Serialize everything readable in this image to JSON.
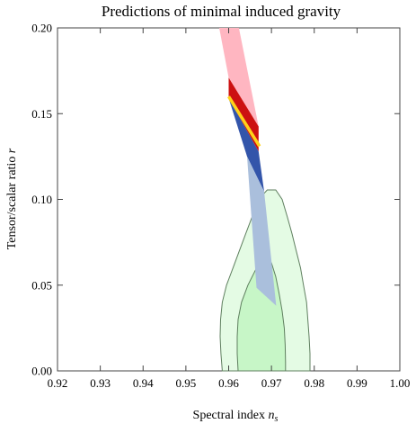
{
  "chart_data": {
    "type": "area",
    "title": "Predictions of minimal induced gravity",
    "xlabel": "Spectral index",
    "xlabel_symbol": "n",
    "xlabel_subscript": "s",
    "ylabel": "Tensor/scalar ratio",
    "ylabel_symbol": "r",
    "xlim": [
      0.92,
      1.0
    ],
    "ylim": [
      0.0,
      0.2
    ],
    "x_ticks": [
      "0.92",
      "0.93",
      "0.94",
      "0.95",
      "0.96",
      "0.97",
      "0.98",
      "0.99",
      "1.00"
    ],
    "x_tick_values": [
      0.92,
      0.93,
      0.94,
      0.95,
      0.96,
      0.97,
      0.98,
      0.99,
      1.0
    ],
    "y_ticks": [
      "0.00",
      "0.05",
      "0.10",
      "0.15",
      "0.20"
    ],
    "y_tick_values": [
      0.0,
      0.05,
      0.1,
      0.15,
      0.2
    ],
    "grid": false,
    "regions": [
      {
        "kind": "contour",
        "level": "outer",
        "fill": "#e4fbe4",
        "stroke": "#5f7f5f",
        "points": [
          [
            0.9585,
            0.0
          ],
          [
            0.9582,
            0.01
          ],
          [
            0.958,
            0.02
          ],
          [
            0.9581,
            0.03
          ],
          [
            0.9585,
            0.04
          ],
          [
            0.9595,
            0.05
          ],
          [
            0.961,
            0.06
          ],
          [
            0.9625,
            0.07
          ],
          [
            0.964,
            0.08
          ],
          [
            0.9655,
            0.09
          ],
          [
            0.967,
            0.1
          ],
          [
            0.969,
            0.1055
          ],
          [
            0.971,
            0.1055
          ],
          [
            0.9725,
            0.1
          ],
          [
            0.9737,
            0.09
          ],
          [
            0.9748,
            0.08
          ],
          [
            0.9758,
            0.07
          ],
          [
            0.9768,
            0.06
          ],
          [
            0.9775,
            0.05
          ],
          [
            0.9782,
            0.04
          ],
          [
            0.9785,
            0.03
          ],
          [
            0.9788,
            0.02
          ],
          [
            0.979,
            0.01
          ],
          [
            0.979,
            0.0
          ]
        ]
      },
      {
        "kind": "contour",
        "level": "inner",
        "fill": "#c7f6c7",
        "stroke": "#5f7f5f",
        "points": [
          [
            0.9622,
            0.0
          ],
          [
            0.962,
            0.01
          ],
          [
            0.962,
            0.02
          ],
          [
            0.9622,
            0.03
          ],
          [
            0.963,
            0.04
          ],
          [
            0.9645,
            0.05
          ],
          [
            0.9665,
            0.06
          ],
          [
            0.9685,
            0.065
          ],
          [
            0.97,
            0.063
          ],
          [
            0.971,
            0.055
          ],
          [
            0.9718,
            0.045
          ],
          [
            0.9725,
            0.035
          ],
          [
            0.973,
            0.025
          ],
          [
            0.9732,
            0.015
          ],
          [
            0.9733,
            0.005
          ],
          [
            0.9733,
            0.0
          ]
        ]
      },
      {
        "kind": "band",
        "fill": "#ffb6c1",
        "points": [
          [
            0.9578,
            0.2
          ],
          [
            0.9624,
            0.2
          ],
          [
            0.967,
            0.1425
          ],
          [
            0.96,
            0.171
          ]
        ]
      },
      {
        "kind": "band",
        "fill": "#cc1111",
        "points": [
          [
            0.96,
            0.171
          ],
          [
            0.967,
            0.1425
          ],
          [
            0.967,
            0.128
          ],
          [
            0.96,
            0.159
          ]
        ]
      },
      {
        "kind": "band",
        "fill": "#3355aa",
        "points": [
          [
            0.96,
            0.159
          ],
          [
            0.967,
            0.128
          ],
          [
            0.9683,
            0.1045
          ],
          [
            0.9643,
            0.125
          ]
        ]
      },
      {
        "kind": "band",
        "fill": "#aabfdc",
        "points": [
          [
            0.9643,
            0.125
          ],
          [
            0.9683,
            0.1045
          ],
          [
            0.9711,
            0.038
          ],
          [
            0.9665,
            0.0485
          ]
        ]
      },
      {
        "kind": "line",
        "stroke": "#ffd21a",
        "points": [
          [
            0.96,
            0.16
          ],
          [
            0.9672,
            0.131
          ]
        ]
      }
    ]
  }
}
